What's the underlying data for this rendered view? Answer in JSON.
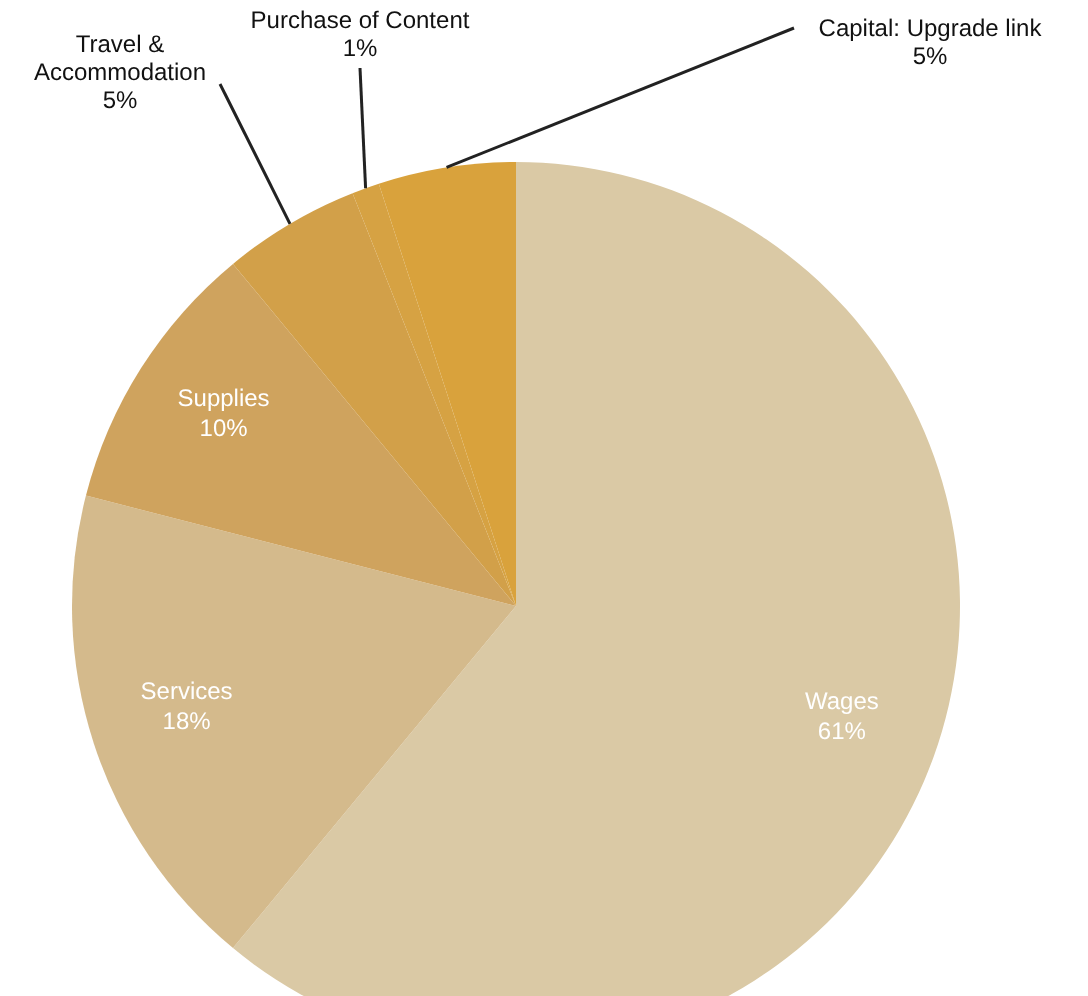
{
  "chart_data": {
    "type": "pie",
    "categories": [
      "Wages",
      "Services",
      "Supplies",
      "Travel & Accommodation",
      "Purchase of Content",
      "Capital: Upgrade link"
    ],
    "values": [
      61,
      18,
      10,
      5,
      1,
      5
    ],
    "colors": [
      "#dac9a5",
      "#d4ba8c",
      "#cfa35e",
      "#d2a049",
      "#d6a243",
      "#d9a23c"
    ],
    "value_labels": [
      "61%",
      "18%",
      "10%",
      "5%",
      "1%",
      "5%"
    ]
  }
}
